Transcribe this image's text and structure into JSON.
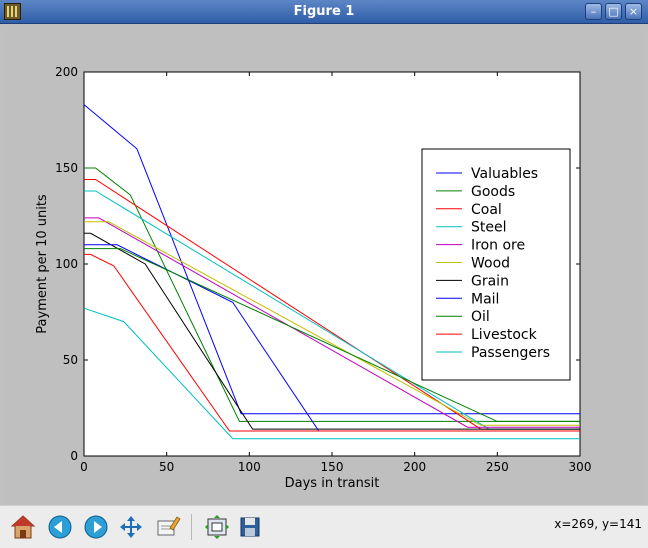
{
  "window": {
    "title": "Figure 1"
  },
  "toolbar": {
    "coords": "x=269, y=141"
  },
  "chart_data": {
    "type": "line",
    "xlabel": "Days in transit",
    "ylabel": "Payment per 10 units",
    "xlim": [
      0,
      300
    ],
    "ylim": [
      0,
      200
    ],
    "xticks": [
      0,
      50,
      100,
      150,
      200,
      250,
      300
    ],
    "yticks": [
      0,
      50,
      100,
      150,
      200
    ],
    "grid": false,
    "legend_position": "right",
    "series": [
      {
        "name": "Valuables",
        "color": "#0000ff",
        "x": [
          0,
          32,
          95,
          300
        ],
        "y": [
          183,
          160,
          22,
          22
        ]
      },
      {
        "name": "Goods",
        "color": "#008000",
        "x": [
          0,
          7,
          28,
          94,
          300
        ],
        "y": [
          150,
          150,
          136,
          18,
          18
        ]
      },
      {
        "name": "Coal",
        "color": "#ff0000",
        "x": [
          0,
          7,
          240,
          300
        ],
        "y": [
          144,
          144,
          14,
          14
        ]
      },
      {
        "name": "Steel",
        "color": "#00bfbf",
        "x": [
          0,
          7,
          245,
          300
        ],
        "y": [
          138,
          138,
          14,
          14
        ]
      },
      {
        "name": "Iron ore",
        "color": "#bf00bf",
        "x": [
          0,
          9,
          232,
          300
        ],
        "y": [
          124,
          124,
          15,
          15
        ]
      },
      {
        "name": "Wood",
        "color": "#bfbf00",
        "x": [
          0,
          15,
          240,
          300
        ],
        "y": [
          122,
          122,
          16,
          16
        ]
      },
      {
        "name": "Grain",
        "color": "#000000",
        "x": [
          0,
          4,
          37,
          102,
          300
        ],
        "y": [
          116,
          116,
          100,
          14,
          14
        ]
      },
      {
        "name": "Mail",
        "color": "#0000ff",
        "x": [
          0,
          20,
          90,
          142,
          300
        ],
        "y": [
          110,
          110,
          80,
          13,
          13
        ]
      },
      {
        "name": "Oil",
        "color": "#008000",
        "x": [
          0,
          22,
          250,
          300
        ],
        "y": [
          108,
          108,
          18,
          18
        ]
      },
      {
        "name": "Livestock",
        "color": "#ff0000",
        "x": [
          0,
          4,
          18,
          88,
          300
        ],
        "y": [
          105,
          105,
          99,
          13,
          13
        ]
      },
      {
        "name": "Passengers",
        "color": "#00bfbf",
        "x": [
          0,
          24,
          90,
          300
        ],
        "y": [
          77,
          70,
          9,
          9
        ]
      }
    ]
  }
}
